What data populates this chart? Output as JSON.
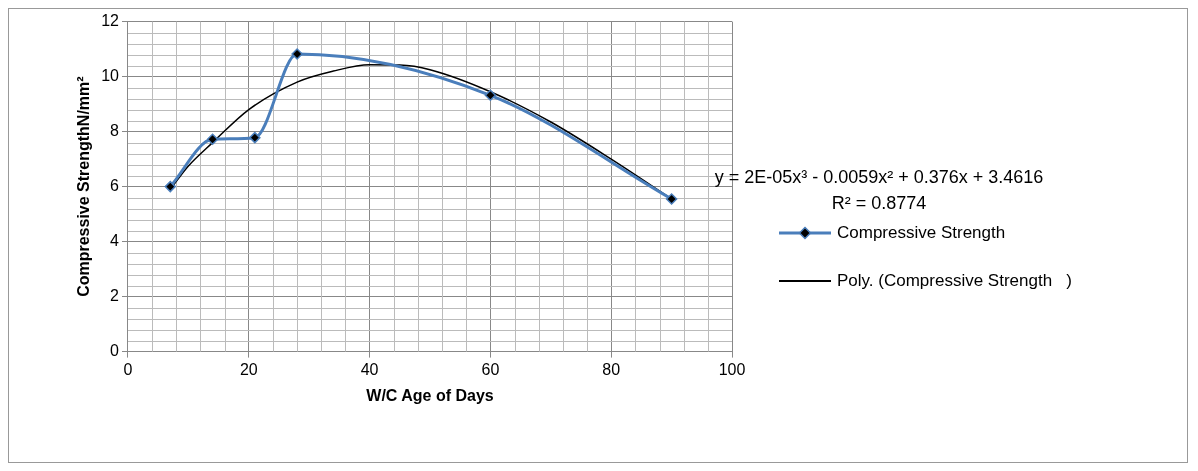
{
  "chart_data": {
    "type": "line",
    "xlabel": "W/C Age of Days",
    "ylabel": "Compressive StrengthN/mm²",
    "xlim": [
      0,
      100
    ],
    "xticks": [
      0,
      20,
      40,
      60,
      80,
      100
    ],
    "ylim": [
      0,
      12
    ],
    "yticks": [
      0,
      2,
      4,
      6,
      8,
      10,
      12
    ],
    "grid": true,
    "legend": "right",
    "annotations": [
      "y = 2E-05x³ - 0.0059x² + 0.376x + 3.4616",
      "R² = 0.8774"
    ],
    "series": [
      {
        "name": "Compressive Strength",
        "color": "#4a7ebb",
        "marker": "diamond",
        "x": [
          7,
          14,
          21,
          28,
          60,
          90
        ],
        "values": [
          6.0,
          7.72,
          7.78,
          10.82,
          9.32,
          5.55
        ]
      },
      {
        "name": "Poly. (Compressive Strength   )",
        "color": "#000000",
        "marker": "none",
        "x": [
          7,
          10,
          14,
          20,
          28,
          34,
          40,
          45,
          50,
          60,
          70,
          80,
          90
        ],
        "values": [
          5.9,
          6.75,
          7.6,
          8.8,
          9.8,
          10.2,
          10.43,
          10.42,
          10.25,
          9.45,
          8.35,
          7.0,
          5.55
        ]
      }
    ]
  }
}
